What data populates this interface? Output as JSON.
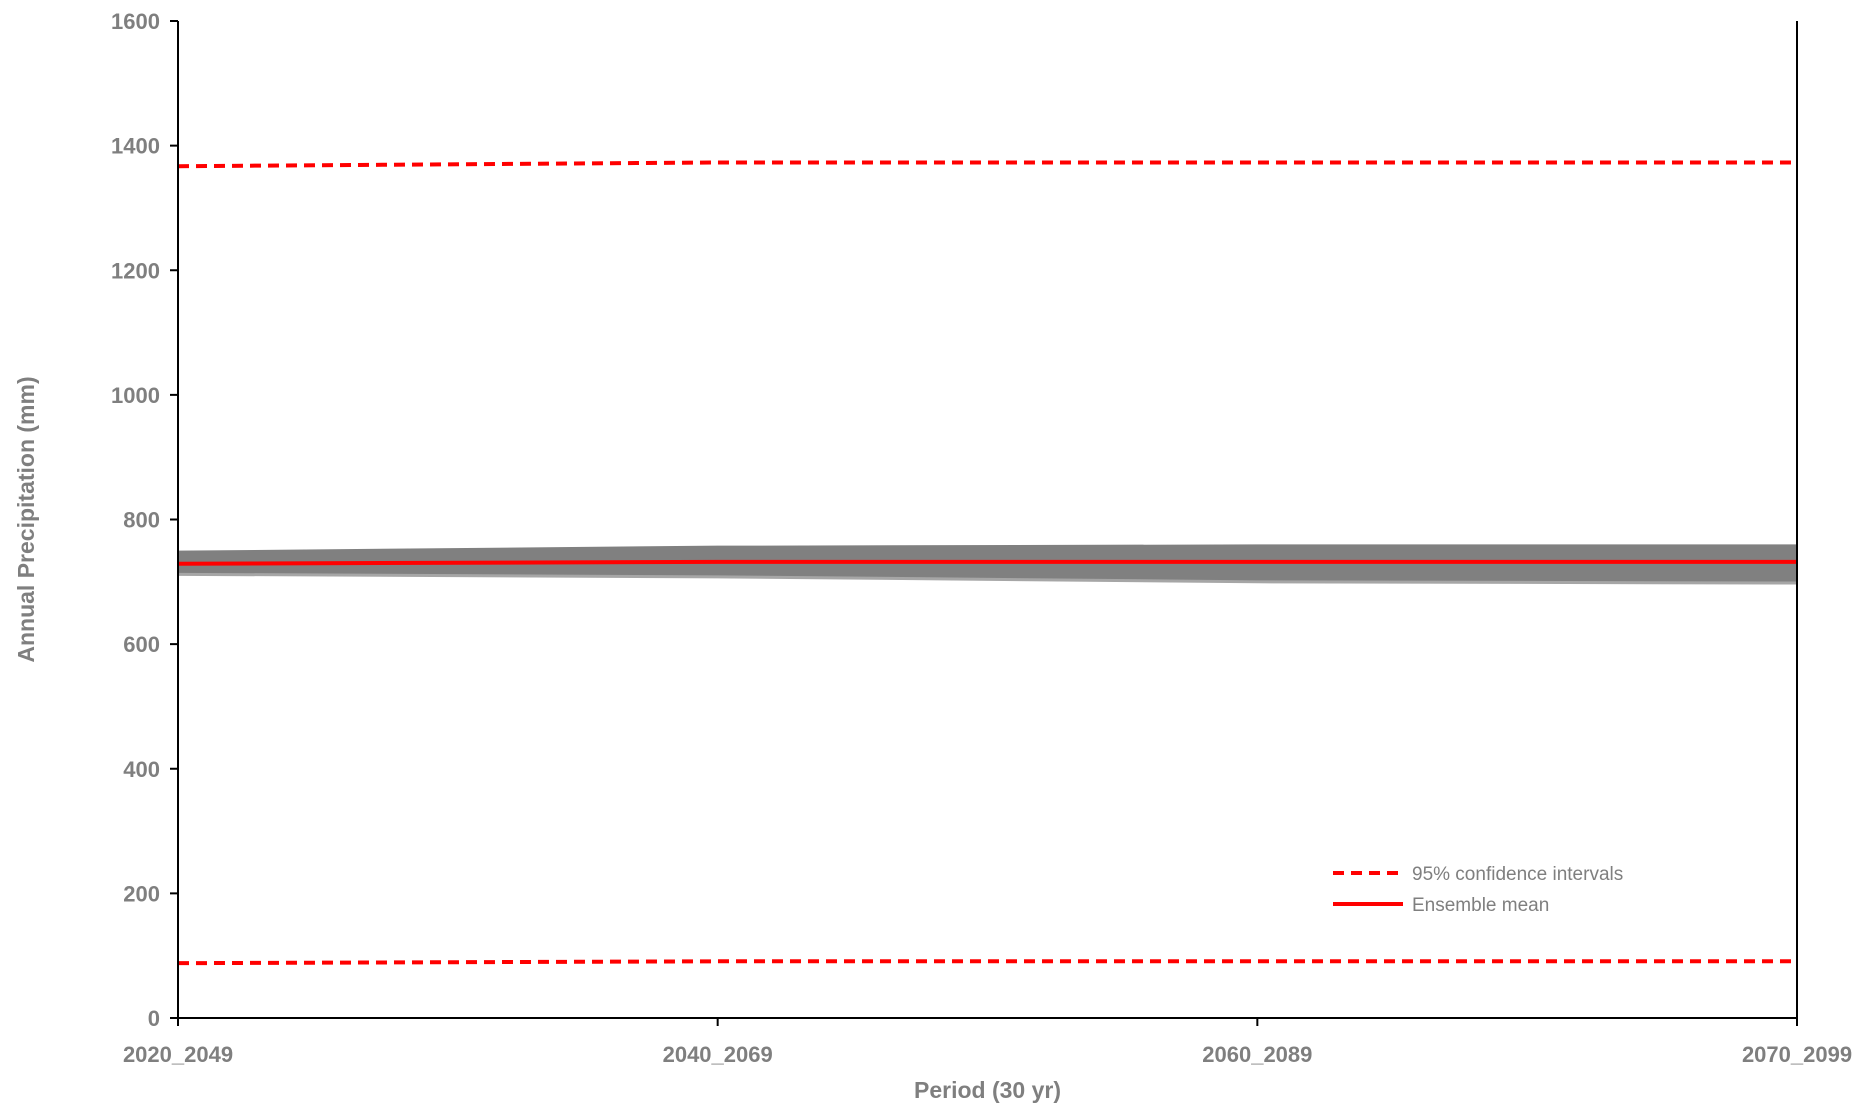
{
  "chart_data": {
    "type": "line",
    "title": "",
    "xlabel": "Period (30 yr)",
    "ylabel": "Annual Precipitation (mm)",
    "categories": [
      "2020_2049",
      "2040_2069",
      "2060_2089",
      "2070_2099"
    ],
    "ylim": [
      0,
      1600
    ],
    "yticks": [
      0,
      200,
      400,
      600,
      800,
      1000,
      1200,
      1400,
      1600
    ],
    "grid": false,
    "legend_position": "bottom-right",
    "ensemble_band": {
      "color": "#808080",
      "upper": [
        750,
        758,
        760,
        760
      ],
      "lower": [
        712,
        708,
        700,
        698
      ]
    },
    "series": [
      {
        "name": "95% confidence intervals",
        "style": "dashed",
        "color": "#ff0000",
        "values": [
          1367,
          1373,
          1373,
          1373
        ]
      },
      {
        "name": "",
        "style": "dashed",
        "color": "#ff0000",
        "values": [
          88,
          91,
          91,
          91
        ],
        "legend_ref": 0
      },
      {
        "name": "Ensemble mean",
        "style": "solid",
        "color": "#ff0000",
        "values": [
          729,
          732,
          732,
          732
        ]
      }
    ]
  }
}
